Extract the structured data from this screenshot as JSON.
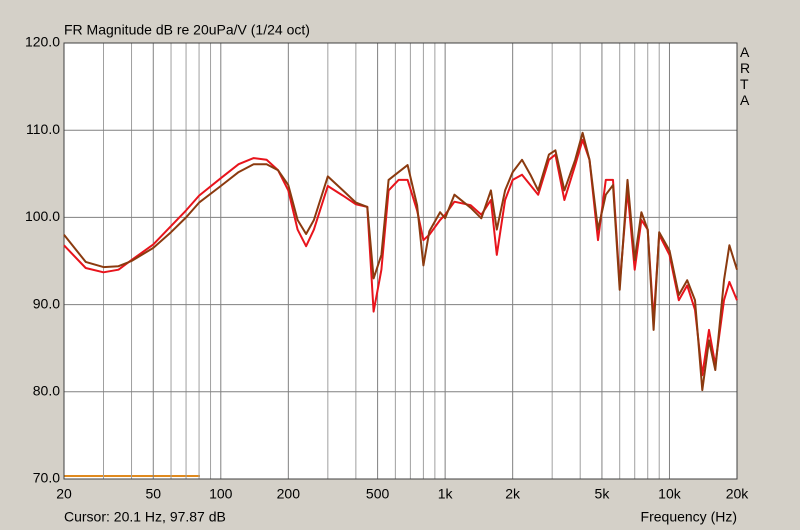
{
  "chart_data": {
    "type": "line",
    "title": "FR Magnitude dB re 20uPa/V (1/24 oct)",
    "side_label": "ARTA",
    "cursor_text": "Cursor: 20.1 Hz, 97.87 dB",
    "x_label": "Frequency (Hz)",
    "log_x": true,
    "grid": true,
    "xlim": [
      20,
      20000
    ],
    "ylim": [
      70,
      120
    ],
    "xticks": [
      20,
      50,
      100,
      200,
      500,
      {
        "value": 1000,
        "label": "1k"
      },
      {
        "value": 2000,
        "label": "2k"
      },
      {
        "value": 5000,
        "label": "5k"
      },
      {
        "value": 10000,
        "label": "10k"
      },
      {
        "value": 20000,
        "label": "20k"
      }
    ],
    "xminorticks": [
      30,
      40,
      60,
      70,
      80,
      90,
      300,
      400,
      600,
      700,
      800,
      900,
      3000,
      4000,
      6000,
      7000,
      8000,
      9000
    ],
    "yticks": [
      {
        "value": 70,
        "label": "70.0"
      },
      {
        "value": 80,
        "label": "80.0"
      },
      {
        "value": 90,
        "label": "90.0"
      },
      {
        "value": 100,
        "label": "100.0"
      },
      {
        "value": 110,
        "label": "110.0"
      },
      {
        "value": 120,
        "label": "120.0"
      }
    ],
    "x": [
      20,
      25,
      30,
      35,
      40,
      50,
      60,
      70,
      80,
      100,
      120,
      140,
      160,
      180,
      200,
      220,
      240,
      260,
      300,
      350,
      400,
      450,
      480,
      520,
      560,
      620,
      680,
      750,
      800,
      850,
      950,
      1000,
      1100,
      1300,
      1450,
      1600,
      1700,
      1850,
      2000,
      2200,
      2400,
      2600,
      2900,
      3100,
      3400,
      3800,
      4100,
      4400,
      4800,
      5200,
      5600,
      6000,
      6500,
      7000,
      7500,
      8000,
      8500,
      9000,
      10000,
      11000,
      12000,
      13000,
      14000,
      15000,
      16000,
      17500,
      18500,
      20000
    ],
    "series": [
      {
        "color": "#e8141c",
        "values": [
          96.8,
          94.2,
          93.7,
          94.0,
          95.1,
          96.9,
          99.0,
          100.8,
          102.5,
          104.5,
          106.1,
          106.8,
          106.6,
          105.4,
          103.1,
          98.6,
          96.7,
          98.6,
          103.6,
          102.5,
          101.5,
          101.2,
          89.2,
          94.0,
          103.1,
          104.3,
          104.3,
          100.8,
          97.4,
          98.0,
          99.7,
          100.3,
          101.8,
          101.4,
          100.3,
          102.0,
          95.7,
          102.0,
          104.3,
          104.9,
          103.7,
          102.6,
          106.6,
          107.2,
          102.0,
          106.0,
          108.9,
          106.6,
          97.4,
          104.3,
          104.3,
          92.3,
          103.1,
          94.0,
          99.7,
          98.6,
          88.2,
          98.0,
          95.7,
          90.5,
          92.2,
          89.4,
          81.9,
          87.1,
          83.1,
          90.5,
          92.6,
          90.5
        ]
      },
      {
        "color": "#8b3a0f",
        "values": [
          98.0,
          94.9,
          94.3,
          94.4,
          95.0,
          96.5,
          98.3,
          100.0,
          101.7,
          103.6,
          105.2,
          106.1,
          106.1,
          105.4,
          103.7,
          99.7,
          98.1,
          99.7,
          104.7,
          103.1,
          101.7,
          101.2,
          93.0,
          95.7,
          104.3,
          105.2,
          106.0,
          101.4,
          94.5,
          98.4,
          100.6,
          99.9,
          102.6,
          101.1,
          99.9,
          103.1,
          98.6,
          103.1,
          105.2,
          106.6,
          104.9,
          103.1,
          107.2,
          107.7,
          103.1,
          106.6,
          109.7,
          106.6,
          98.6,
          102.6,
          103.7,
          91.7,
          104.3,
          95.1,
          100.6,
          98.6,
          87.1,
          98.3,
          96.2,
          91.1,
          92.8,
          90.5,
          80.2,
          85.9,
          82.5,
          92.8,
          96.8,
          94.0
        ]
      }
    ]
  }
}
